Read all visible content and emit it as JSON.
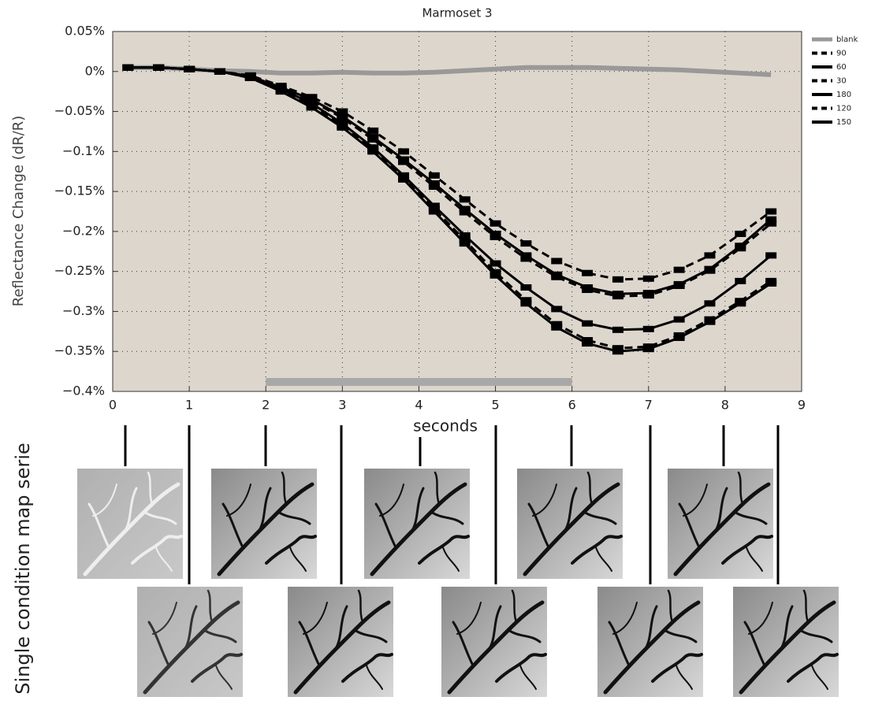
{
  "chart_data": {
    "type": "line",
    "title": "Marmoset 3",
    "xlabel": "seconds",
    "ylabel": "Reflectance Change (dR/R)",
    "x": [
      0.2,
      0.6,
      1.0,
      1.4,
      1.8,
      2.2,
      2.6,
      3.0,
      3.4,
      3.8,
      4.2,
      4.6,
      5.0,
      5.4,
      5.8,
      6.2,
      6.6,
      7.0,
      7.4,
      7.8,
      8.2,
      8.6
    ],
    "series": [
      {
        "name": "blank",
        "color": "#999999",
        "linestyle": "solid",
        "values": [
          0.005,
          0.005,
          0.003,
          0.001,
          0,
          -0.002,
          -0.002,
          -0.001,
          -0.002,
          -0.002,
          -0.001,
          0.001,
          0.003,
          0.005,
          0.005,
          0.005,
          0.004,
          0.003,
          0.002,
          0,
          -0.002,
          -0.004
        ]
      },
      {
        "name": "90",
        "color": "#000000",
        "linestyle": "dashed",
        "values": [
          0.005,
          0.005,
          0.003,
          0,
          -0.005,
          -0.018,
          -0.032,
          -0.05,
          -0.074,
          -0.1,
          -0.13,
          -0.16,
          -0.19,
          -0.215,
          -0.237,
          -0.252,
          -0.26,
          -0.259,
          -0.248,
          -0.23,
          -0.203,
          -0.175
        ]
      },
      {
        "name": "60",
        "color": "#000000",
        "linestyle": "solid",
        "values": [
          0.005,
          0.005,
          0.003,
          0,
          -0.006,
          -0.02,
          -0.035,
          -0.056,
          -0.082,
          -0.11,
          -0.14,
          -0.172,
          -0.203,
          -0.23,
          -0.254,
          -0.27,
          -0.278,
          -0.277,
          -0.266,
          -0.247,
          -0.218,
          -0.185
        ]
      },
      {
        "name": "30",
        "color": "#000000",
        "linestyle": "dashed",
        "values": [
          0.005,
          0.005,
          0.003,
          0,
          -0.006,
          -0.021,
          -0.037,
          -0.058,
          -0.085,
          -0.113,
          -0.144,
          -0.176,
          -0.207,
          -0.234,
          -0.257,
          -0.273,
          -0.281,
          -0.28,
          -0.268,
          -0.249,
          -0.221,
          -0.19
        ]
      },
      {
        "name": "180",
        "color": "#000000",
        "linestyle": "solid",
        "values": [
          0.005,
          0.005,
          0.003,
          0,
          -0.007,
          -0.022,
          -0.04,
          -0.065,
          -0.095,
          -0.13,
          -0.168,
          -0.205,
          -0.24,
          -0.27,
          -0.297,
          -0.315,
          -0.323,
          -0.322,
          -0.31,
          -0.29,
          -0.262,
          -0.23
        ]
      },
      {
        "name": "120",
        "color": "#000000",
        "linestyle": "dashed",
        "values": [
          0.005,
          0.005,
          0.003,
          0,
          -0.008,
          -0.024,
          -0.043,
          -0.068,
          -0.098,
          -0.133,
          -0.172,
          -0.211,
          -0.251,
          -0.286,
          -0.316,
          -0.336,
          -0.346,
          -0.344,
          -0.33,
          -0.31,
          -0.287,
          -0.262
        ]
      },
      {
        "name": "150",
        "color": "#000000",
        "linestyle": "solid",
        "values": [
          0.005,
          0.005,
          0.003,
          0,
          -0.008,
          -0.025,
          -0.045,
          -0.07,
          -0.1,
          -0.135,
          -0.175,
          -0.215,
          -0.255,
          -0.29,
          -0.32,
          -0.34,
          -0.35,
          -0.347,
          -0.333,
          -0.313,
          -0.29,
          -0.265
        ]
      }
    ],
    "stimulus": {
      "start": 2,
      "end": 6,
      "color": "#a8a8a8"
    },
    "xlim": [
      0,
      9
    ],
    "xticks": [
      0,
      1,
      2,
      3,
      4,
      5,
      6,
      7,
      8,
      9
    ],
    "ylim": [
      -0.4,
      0.05
    ],
    "yticks": [
      {
        "value": 0.05,
        "label": "0.05%"
      },
      {
        "value": 0,
        "label": "0%"
      },
      {
        "value": -0.05,
        "label": "−0.05%"
      },
      {
        "value": -0.1,
        "label": "−0.1%"
      },
      {
        "value": -0.15,
        "label": "−0.15%"
      },
      {
        "value": -0.2,
        "label": "−0.2%"
      },
      {
        "value": -0.25,
        "label": "−0.25%"
      },
      {
        "value": -0.3,
        "label": "−0.3%"
      },
      {
        "value": -0.35,
        "label": "−0.35%"
      },
      {
        "value": -0.4,
        "label": "−0.4%"
      }
    ],
    "grid": true,
    "legend": "outside-right"
  },
  "image_series_label": "Single condition map serie"
}
